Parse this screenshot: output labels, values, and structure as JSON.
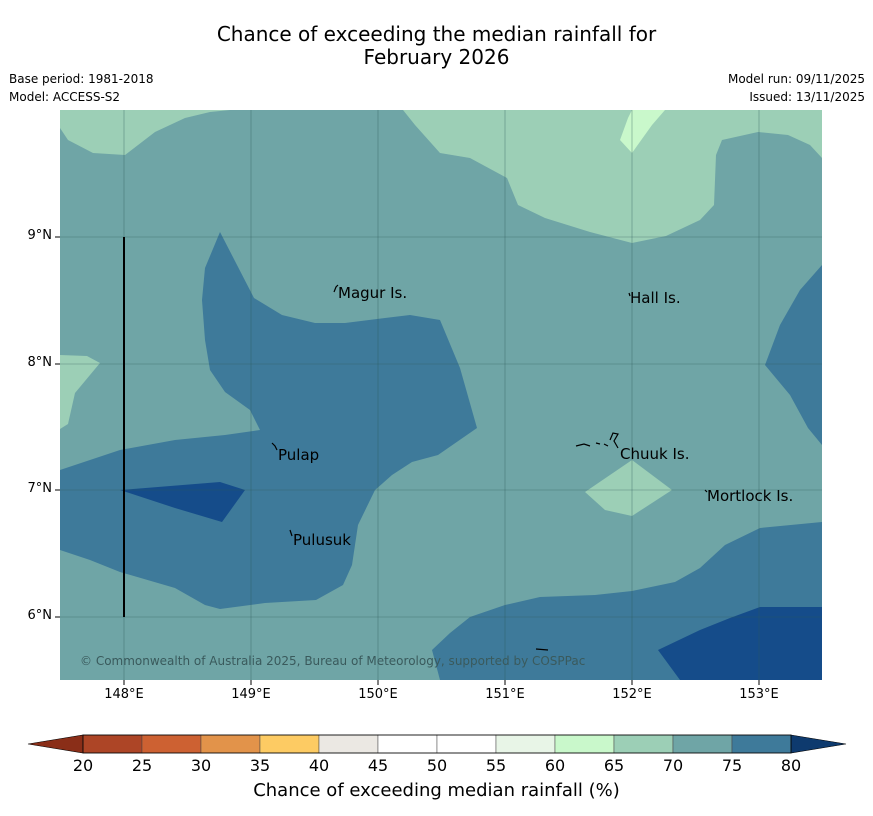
{
  "title_line1": "Chance of exceeding the median rainfall for",
  "title_line2": "February 2026",
  "meta": {
    "base_period": "Base period: 1981-2018",
    "model": "Model: ACCESS-S2",
    "model_run": "Model run: 09/11/2025",
    "issued": "Issued: 13/11/2025"
  },
  "axes": {
    "y_ticks": [
      "9°N",
      "8°N",
      "7°N",
      "6°N"
    ],
    "x_ticks": [
      "148°E",
      "149°E",
      "150°E",
      "151°E",
      "152°E",
      "153°E"
    ]
  },
  "places": [
    "Magur Is.",
    "Hall Is.",
    "Pulap",
    "Chuuk Is.",
    "Mortlock Is.",
    "Pulusuk"
  ],
  "copyright": "© Commonwealth of Australia 2025, Bureau of Meteorology, supported by COSPPac",
  "colorbar": {
    "title": "Chance of exceeding median rainfall (%)",
    "ticks": [
      "20",
      "25",
      "30",
      "35",
      "40",
      "45",
      "50",
      "55",
      "60",
      "65",
      "70",
      "75",
      "80"
    ],
    "colors": [
      "#ad4526",
      "#cd6132",
      "#e2934a",
      "#fdcb63",
      "#ebe8e3",
      "#ffffff",
      "#ffffff",
      "#e8f5e7",
      "#c9f8cb",
      "#9ccfb6",
      "#6fa5a6",
      "#3e7a9a",
      "#154c8a"
    ]
  }
}
